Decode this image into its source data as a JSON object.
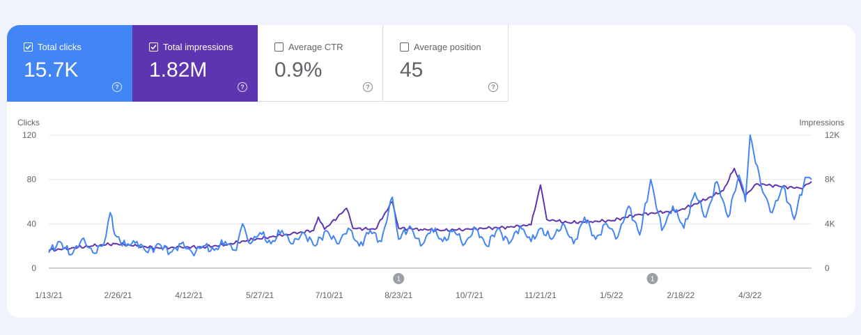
{
  "metrics": [
    {
      "label": "Total clicks",
      "value": "15.7K",
      "selected": true,
      "color": "#4285f4"
    },
    {
      "label": "Total impressions",
      "value": "1.82M",
      "selected": true,
      "color": "#5e35b1"
    },
    {
      "label": "Average CTR",
      "value": "0.9%",
      "selected": false,
      "color": "#ffffff"
    },
    {
      "label": "Average position",
      "value": "45",
      "selected": false,
      "color": "#ffffff"
    }
  ],
  "help_glyph": "?",
  "chart_data": {
    "type": "line",
    "left_axis_title": "Clicks",
    "right_axis_title": "Impressions",
    "y_left_ticks": [
      "0",
      "40",
      "80",
      "120"
    ],
    "y_left_range": [
      0,
      120
    ],
    "y_right_ticks": [
      "0",
      "4K",
      "8K",
      "12K"
    ],
    "y_right_range": [
      0,
      12000
    ],
    "x_ticks": [
      "1/13/21",
      "2/26/21",
      "4/12/21",
      "5/27/21",
      "7/10/21",
      "8/23/21",
      "10/7/21",
      "11/21/21",
      "1/5/22",
      "2/18/22",
      "4/3/22"
    ],
    "x_start": "1/13/21",
    "x_end": "5/12/22",
    "grid": true,
    "annotations": [
      {
        "date": "8/23/21",
        "label": "1"
      },
      {
        "date": "1/31/22",
        "label": "1"
      }
    ],
    "series": [
      {
        "name": "Total clicks",
        "axis": "left",
        "color": "#4285f4",
        "points": [
          [
            "1/13/21",
            14
          ],
          [
            "1/20/21",
            24
          ],
          [
            "1/27/21",
            12
          ],
          [
            "2/3/21",
            26
          ],
          [
            "2/10/21",
            14
          ],
          [
            "2/17/21",
            22
          ],
          [
            "2/21/21",
            50
          ],
          [
            "2/24/21",
            30
          ],
          [
            "3/3/21",
            20
          ],
          [
            "3/10/21",
            24
          ],
          [
            "3/17/21",
            14
          ],
          [
            "3/24/21",
            22
          ],
          [
            "3/31/21",
            14
          ],
          [
            "4/7/21",
            22
          ],
          [
            "4/14/21",
            14
          ],
          [
            "4/21/21",
            20
          ],
          [
            "4/28/21",
            16
          ],
          [
            "5/5/21",
            24
          ],
          [
            "5/12/21",
            16
          ],
          [
            "5/16/21",
            40
          ],
          [
            "5/21/21",
            22
          ],
          [
            "5/27/21",
            32
          ],
          [
            "6/3/21",
            22
          ],
          [
            "6/10/21",
            34
          ],
          [
            "6/17/21",
            22
          ],
          [
            "6/24/21",
            32
          ],
          [
            "7/1/21",
            20
          ],
          [
            "7/8/21",
            34
          ],
          [
            "7/15/21",
            22
          ],
          [
            "7/22/21",
            36
          ],
          [
            "7/29/21",
            20
          ],
          [
            "8/5/21",
            34
          ],
          [
            "8/12/21",
            24
          ],
          [
            "8/19/21",
            64
          ],
          [
            "8/23/21",
            26
          ],
          [
            "8/30/21",
            38
          ],
          [
            "9/6/21",
            20
          ],
          [
            "9/13/21",
            36
          ],
          [
            "9/20/21",
            24
          ],
          [
            "9/27/21",
            34
          ],
          [
            "10/4/21",
            22
          ],
          [
            "10/11/21",
            36
          ],
          [
            "10/18/21",
            20
          ],
          [
            "10/25/21",
            36
          ],
          [
            "11/1/21",
            22
          ],
          [
            "11/8/21",
            38
          ],
          [
            "11/15/21",
            24
          ],
          [
            "11/21/21",
            36
          ],
          [
            "11/28/21",
            26
          ],
          [
            "12/5/21",
            40
          ],
          [
            "12/12/21",
            22
          ],
          [
            "12/19/21",
            46
          ],
          [
            "12/26/21",
            26
          ],
          [
            "1/2/22",
            40
          ],
          [
            "1/9/22",
            28
          ],
          [
            "1/16/22",
            56
          ],
          [
            "1/23/22",
            30
          ],
          [
            "1/30/22",
            80
          ],
          [
            "2/6/22",
            34
          ],
          [
            "2/13/22",
            56
          ],
          [
            "2/20/22",
            36
          ],
          [
            "2/27/22",
            68
          ],
          [
            "3/6/22",
            46
          ],
          [
            "3/13/22",
            78
          ],
          [
            "3/20/22",
            46
          ],
          [
            "3/27/22",
            84
          ],
          [
            "3/31/22",
            60
          ],
          [
            "4/3/22",
            120
          ],
          [
            "4/10/22",
            74
          ],
          [
            "4/17/22",
            50
          ],
          [
            "4/24/22",
            74
          ],
          [
            "5/1/22",
            44
          ],
          [
            "5/8/22",
            82
          ],
          [
            "5/12/22",
            80
          ]
        ]
      },
      {
        "name": "Total impressions",
        "axis": "right",
        "color": "#5e35b1",
        "points": [
          [
            "1/13/21",
            1600
          ],
          [
            "1/27/21",
            1800
          ],
          [
            "2/10/21",
            2000
          ],
          [
            "2/24/21",
            2200
          ],
          [
            "3/10/21",
            2000
          ],
          [
            "3/24/21",
            1800
          ],
          [
            "4/7/21",
            1900
          ],
          [
            "4/21/21",
            1900
          ],
          [
            "5/5/21",
            2100
          ],
          [
            "5/19/21",
            2500
          ],
          [
            "6/2/21",
            2800
          ],
          [
            "6/16/21",
            3100
          ],
          [
            "6/30/21",
            3400
          ],
          [
            "7/3/21",
            4600
          ],
          [
            "7/7/21",
            3500
          ],
          [
            "7/21/21",
            5400
          ],
          [
            "7/25/21",
            3600
          ],
          [
            "8/8/21",
            3500
          ],
          [
            "8/19/21",
            6000
          ],
          [
            "8/23/21",
            3600
          ],
          [
            "9/6/21",
            3500
          ],
          [
            "9/20/21",
            3400
          ],
          [
            "10/4/21",
            3500
          ],
          [
            "10/18/21",
            3600
          ],
          [
            "11/1/21",
            3700
          ],
          [
            "11/15/21",
            3900
          ],
          [
            "11/21/21",
            7500
          ],
          [
            "11/25/21",
            4400
          ],
          [
            "12/9/21",
            4100
          ],
          [
            "12/23/21",
            4200
          ],
          [
            "1/6/22",
            4300
          ],
          [
            "1/20/22",
            4800
          ],
          [
            "2/3/22",
            5000
          ],
          [
            "2/17/22",
            5200
          ],
          [
            "3/3/22",
            6000
          ],
          [
            "3/17/22",
            7000
          ],
          [
            "3/24/22",
            9000
          ],
          [
            "3/31/22",
            6500
          ],
          [
            "4/7/22",
            7600
          ],
          [
            "4/21/22",
            7400
          ],
          [
            "5/5/22",
            7200
          ],
          [
            "5/12/22",
            7800
          ]
        ]
      }
    ]
  }
}
